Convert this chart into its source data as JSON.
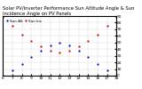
{
  "title": "Solar PV/Inverter Performance Sun Altitude Angle & Sun Incidence Angle on PV Panels",
  "legend": [
    "Sun Alt",
    "Sun Inc"
  ],
  "x": [
    6,
    7,
    8,
    9,
    10,
    11,
    12,
    13,
    14,
    15,
    16,
    17,
    18
  ],
  "sun_altitude": [
    0,
    8,
    18,
    28,
    38,
    46,
    50,
    46,
    38,
    28,
    18,
    8,
    0
  ],
  "sun_incidence": [
    89,
    75,
    62,
    52,
    44,
    38,
    35,
    38,
    44,
    52,
    62,
    75,
    89
  ],
  "ylim": [
    0,
    90
  ],
  "yticks": [
    0,
    10,
    20,
    30,
    40,
    50,
    60,
    70,
    80,
    90
  ],
  "xlim": [
    6,
    18
  ],
  "xticks": [
    6,
    7,
    8,
    9,
    10,
    11,
    12,
    13,
    14,
    15,
    16,
    17,
    18
  ],
  "color_altitude": "#0000cc",
  "color_incidence": "#cc0000",
  "bg_color": "#ffffff",
  "grid_color": "#aaaaaa",
  "title_fontsize": 3.8,
  "tick_fontsize": 3.2,
  "legend_fontsize": 3.0,
  "figsize": [
    1.6,
    1.0
  ],
  "dpi": 100
}
